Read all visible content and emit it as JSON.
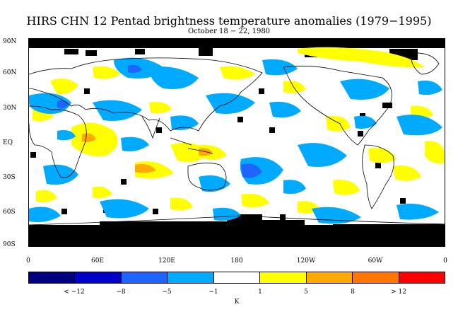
{
  "title": "HIRS CHN 12 Pentad brightness temperature anomalies (1979−1995)",
  "subtitle": "October 18 − 22, 1980",
  "y_axis_labels": [
    "90N",
    "60N",
    "30N",
    "EQ",
    "30S",
    "60S",
    "90S"
  ],
  "x_axis_labels": [
    "0",
    "60E",
    "120E",
    "180",
    "120W",
    "60W",
    "0"
  ],
  "colorbar": {
    "colors": [
      "#000080",
      "#0000c8",
      "#1e64ff",
      "#00aaff",
      "#ffffff",
      "#ffff00",
      "#ffaa00",
      "#ff7700",
      "#ff0000"
    ],
    "labels": [
      "< −12",
      "−8",
      "−5",
      "−1",
      "1",
      "5",
      "8",
      "> 12"
    ],
    "units": "K"
  },
  "colors": {
    "positive_light": "#ffff00",
    "negative_light": "#00aaff",
    "negative_mid": "#1e64ff",
    "missing": "#000000"
  }
}
